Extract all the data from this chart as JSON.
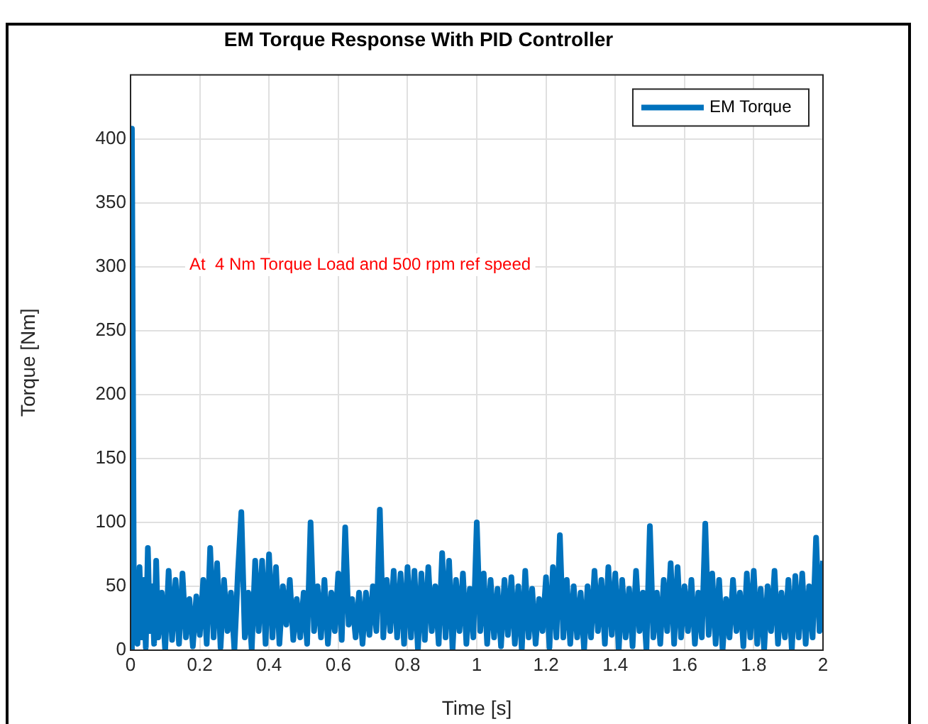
{
  "chart_data": {
    "type": "line",
    "title": "EM Torque Response With PID Controller",
    "xlabel": "Time [s]",
    "ylabel": "Torque [Nm]",
    "annotations": [
      "At  4 Nm Torque Load and 500 rpm ref speed"
    ],
    "xlim": [
      0,
      2
    ],
    "xticks": [
      0,
      0.2,
      0.4,
      0.6,
      0.8,
      1,
      1.2,
      1.4,
      1.6,
      1.8,
      2
    ],
    "ylim": [
      0,
      450
    ],
    "yticks": [
      0,
      50,
      100,
      150,
      200,
      250,
      300,
      350,
      400
    ],
    "grid": true,
    "legend": "top right",
    "series": [
      {
        "name": "EM Torque",
        "color": "#0072bd",
        "x": [
          0,
          0.004,
          0.01,
          0.014,
          0.02,
          0.026,
          0.032,
          0.038,
          0.044,
          0.05,
          0.056,
          0.062,
          0.068,
          0.074,
          0.08,
          0.09,
          0.1,
          0.11,
          0.12,
          0.13,
          0.14,
          0.15,
          0.16,
          0.17,
          0.18,
          0.19,
          0.2,
          0.21,
          0.22,
          0.23,
          0.24,
          0.25,
          0.26,
          0.27,
          0.28,
          0.29,
          0.3,
          0.31,
          0.32,
          0.33,
          0.34,
          0.35,
          0.36,
          0.37,
          0.38,
          0.39,
          0.4,
          0.41,
          0.42,
          0.43,
          0.44,
          0.45,
          0.46,
          0.47,
          0.48,
          0.49,
          0.5,
          0.51,
          0.52,
          0.53,
          0.54,
          0.55,
          0.56,
          0.57,
          0.58,
          0.59,
          0.6,
          0.61,
          0.62,
          0.63,
          0.64,
          0.65,
          0.66,
          0.67,
          0.68,
          0.69,
          0.7,
          0.71,
          0.72,
          0.73,
          0.74,
          0.75,
          0.76,
          0.77,
          0.78,
          0.79,
          0.8,
          0.81,
          0.82,
          0.83,
          0.84,
          0.85,
          0.86,
          0.87,
          0.88,
          0.89,
          0.9,
          0.91,
          0.92,
          0.93,
          0.94,
          0.95,
          0.96,
          0.97,
          0.98,
          0.99,
          1,
          1.01,
          1.02,
          1.03,
          1.04,
          1.05,
          1.06,
          1.07,
          1.08,
          1.09,
          1.1,
          1.11,
          1.12,
          1.13,
          1.14,
          1.15,
          1.16,
          1.17,
          1.18,
          1.19,
          1.2,
          1.21,
          1.22,
          1.23,
          1.24,
          1.25,
          1.26,
          1.27,
          1.28,
          1.29,
          1.3,
          1.31,
          1.32,
          1.33,
          1.34,
          1.35,
          1.36,
          1.37,
          1.38,
          1.39,
          1.4,
          1.41,
          1.42,
          1.43,
          1.44,
          1.45,
          1.46,
          1.47,
          1.48,
          1.49,
          1.5,
          1.51,
          1.52,
          1.53,
          1.54,
          1.55,
          1.56,
          1.57,
          1.58,
          1.59,
          1.6,
          1.61,
          1.62,
          1.63,
          1.64,
          1.65,
          1.66,
          1.67,
          1.68,
          1.69,
          1.7,
          1.71,
          1.72,
          1.73,
          1.74,
          1.75,
          1.76,
          1.77,
          1.78,
          1.79,
          1.8,
          1.81,
          1.82,
          1.83,
          1.84,
          1.85,
          1.86,
          1.87,
          1.88,
          1.89,
          1.9,
          1.91,
          1.92,
          1.93,
          1.94,
          1.95,
          1.96,
          1.97,
          1.98,
          1.99,
          2
        ],
        "values": [
          0,
          408,
          20,
          60,
          5,
          65,
          10,
          55,
          2,
          80,
          15,
          50,
          5,
          70,
          10,
          45,
          0,
          62,
          8,
          55,
          5,
          60,
          10,
          40,
          3,
          42,
          12,
          55,
          5,
          80,
          10,
          68,
          2,
          55,
          15,
          45,
          0,
          60,
          108,
          10,
          45,
          0,
          70,
          15,
          70,
          5,
          75,
          10,
          65,
          5,
          50,
          20,
          55,
          8,
          40,
          10,
          45,
          5,
          100,
          15,
          50,
          10,
          55,
          5,
          45,
          15,
          60,
          8,
          96,
          20,
          40,
          10,
          45,
          5,
          45,
          12,
          50,
          15,
          110,
          10,
          55,
          15,
          62,
          10,
          60,
          5,
          65,
          10,
          62,
          0,
          60,
          8,
          65,
          15,
          50,
          5,
          76,
          10,
          70,
          0,
          55,
          15,
          60,
          5,
          48,
          10,
          100,
          15,
          60,
          5,
          55,
          10,
          48,
          3,
          55,
          12,
          57,
          5,
          50,
          0,
          62,
          10,
          48,
          5,
          40,
          15,
          57,
          2,
          65,
          10,
          90,
          10,
          55,
          5,
          50,
          10,
          45,
          0,
          50,
          10,
          62,
          15,
          55,
          5,
          65,
          12,
          60,
          0,
          55,
          10,
          48,
          3,
          62,
          15,
          45,
          0,
          97,
          10,
          45,
          5,
          55,
          15,
          68,
          5,
          65,
          10,
          50,
          15,
          55,
          5,
          45,
          10,
          99,
          12,
          60,
          5,
          55,
          0,
          40,
          10,
          55,
          15,
          45,
          3,
          60,
          10,
          62,
          5,
          48,
          0,
          50,
          15,
          62,
          5,
          45,
          10,
          55,
          0,
          58,
          10,
          60,
          5,
          50,
          10,
          88,
          15,
          70
        ]
      }
    ]
  }
}
